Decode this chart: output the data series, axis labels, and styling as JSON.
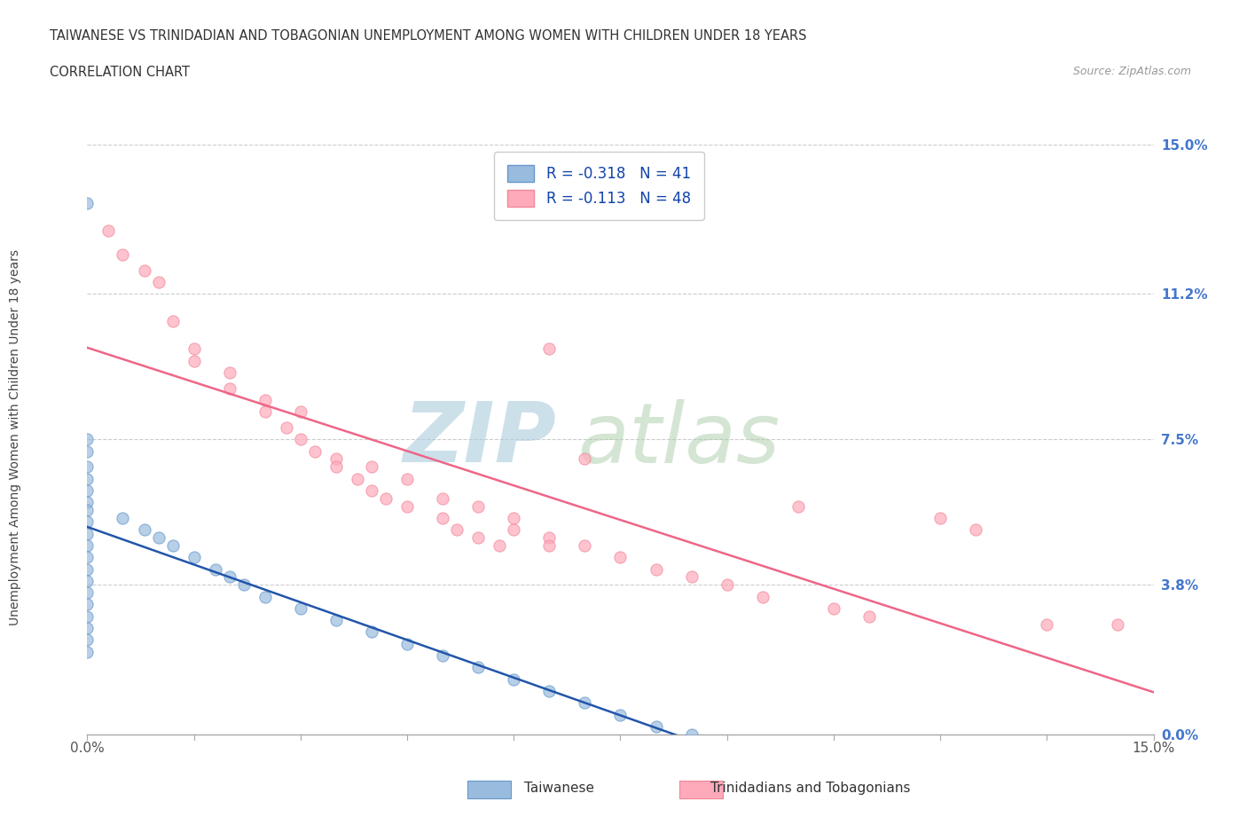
{
  "title1": "TAIWANESE VS TRINIDADIAN AND TOBAGONIAN UNEMPLOYMENT AMONG WOMEN WITH CHILDREN UNDER 18 YEARS",
  "title2": "CORRELATION CHART",
  "source": "Source: ZipAtlas.com",
  "R1": -0.318,
  "N1": 41,
  "R2": -0.113,
  "N2": 48,
  "color1": "#99BBDD",
  "color1_edge": "#6699CC",
  "color2": "#FFAABB",
  "color2_edge": "#EE8899",
  "line_color1": "#2255AA",
  "line_color2": "#EE6688",
  "ytick_color": "#4477CC",
  "label1": "Taiwanese",
  "label2": "Trinidadians and Tobagonians",
  "ytick_vals": [
    0.0,
    3.8,
    7.5,
    11.2,
    15.0
  ],
  "ytick_labels": [
    "0.0%",
    "3.8%",
    "7.5%",
    "11.2%",
    "15.0%"
  ],
  "taiwanese_x": [
    0.0,
    0.0,
    0.0,
    0.0,
    0.0,
    0.0,
    0.0,
    0.0,
    0.0,
    0.0,
    0.0,
    0.0,
    0.0,
    0.0,
    0.0,
    0.0,
    0.0,
    0.0,
    0.0,
    0.0,
    0.5,
    0.8,
    1.0,
    1.2,
    1.5,
    1.8,
    2.0,
    2.2,
    2.5,
    3.0,
    3.5,
    4.0,
    4.5,
    5.0,
    5.5,
    6.0,
    6.5,
    7.0,
    7.5,
    8.0,
    8.5
  ],
  "taiwanese_y": [
    13.5,
    7.5,
    7.2,
    6.8,
    6.5,
    6.2,
    5.9,
    5.7,
    5.4,
    5.1,
    4.8,
    4.5,
    4.2,
    3.9,
    3.6,
    3.3,
    3.0,
    2.7,
    2.4,
    2.1,
    5.5,
    5.2,
    5.0,
    4.8,
    4.5,
    4.2,
    4.0,
    3.8,
    3.5,
    3.2,
    2.9,
    2.6,
    2.3,
    2.0,
    1.7,
    1.4,
    1.1,
    0.8,
    0.5,
    0.2,
    0.0
  ],
  "trinidadian_x": [
    0.3,
    0.5,
    0.8,
    1.0,
    1.2,
    1.5,
    1.5,
    2.0,
    2.0,
    2.5,
    2.5,
    2.8,
    3.0,
    3.0,
    3.2,
    3.5,
    3.5,
    3.8,
    4.0,
    4.0,
    4.2,
    4.5,
    4.5,
    5.0,
    5.0,
    5.2,
    5.5,
    5.5,
    5.8,
    6.0,
    6.0,
    6.5,
    6.5,
    7.0,
    7.0,
    7.5,
    8.0,
    8.5,
    9.0,
    9.5,
    10.0,
    10.5,
    11.0,
    12.0,
    12.5,
    13.5,
    14.5,
    6.5
  ],
  "trinidadian_y": [
    12.8,
    12.2,
    11.8,
    11.5,
    10.5,
    9.8,
    9.5,
    9.2,
    8.8,
    8.5,
    8.2,
    7.8,
    8.2,
    7.5,
    7.2,
    7.0,
    6.8,
    6.5,
    6.8,
    6.2,
    6.0,
    5.8,
    6.5,
    6.0,
    5.5,
    5.2,
    5.0,
    5.8,
    4.8,
    5.5,
    5.2,
    5.0,
    4.8,
    4.8,
    7.0,
    4.5,
    4.2,
    4.0,
    3.8,
    3.5,
    5.8,
    3.2,
    3.0,
    5.5,
    5.2,
    2.8,
    2.8,
    9.8
  ]
}
